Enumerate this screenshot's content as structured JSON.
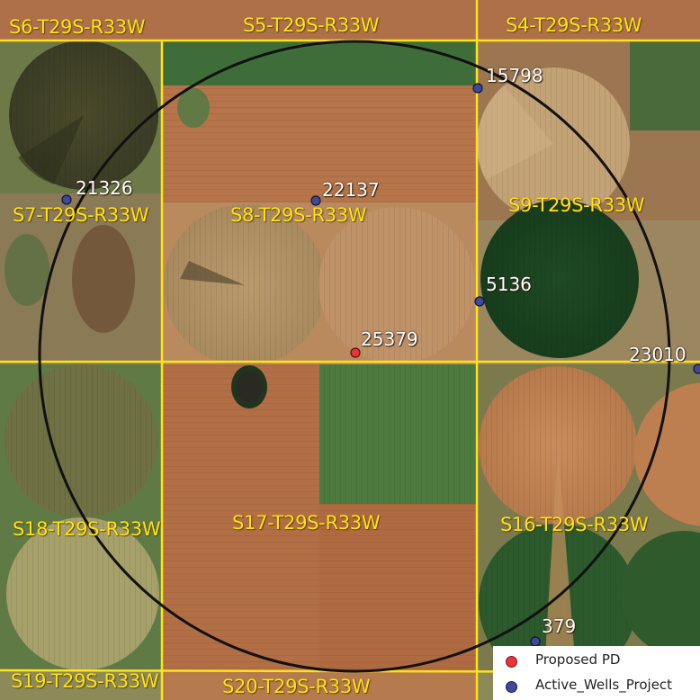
{
  "sections": [
    {
      "id": "s6",
      "label": "S6-T29S-R33W"
    },
    {
      "id": "s5",
      "label": "S5-T29S-R33W"
    },
    {
      "id": "s4",
      "label": "S4-T29S-R33W"
    },
    {
      "id": "s7",
      "label": "S7-T29S-R33W"
    },
    {
      "id": "s8",
      "label": "S8-T29S-R33W"
    },
    {
      "id": "s9",
      "label": "S9-T29S-R33W"
    },
    {
      "id": "s18",
      "label": "S18-T29S-R33W"
    },
    {
      "id": "s17",
      "label": "S17-T29S-R33W"
    },
    {
      "id": "s16",
      "label": "S16-T29S-R33W"
    },
    {
      "id": "s19",
      "label": "S19-T29S-R33W"
    },
    {
      "id": "s20",
      "label": "S20-T29S-R33W"
    }
  ],
  "wells": [
    {
      "id": "15798",
      "label": "15798",
      "type": "active"
    },
    {
      "id": "21326",
      "label": "21326",
      "type": "active"
    },
    {
      "id": "22137",
      "label": "22137",
      "type": "active"
    },
    {
      "id": "5136",
      "label": "5136",
      "type": "active"
    },
    {
      "id": "25379",
      "label": "25379",
      "type": "proposed"
    },
    {
      "id": "23010",
      "label": "23010",
      "type": "active"
    },
    {
      "id": "379",
      "label": "379",
      "type": "active"
    }
  ],
  "legend": {
    "items": [
      {
        "label": "Proposed PD",
        "color": "#e8343a"
      },
      {
        "label": "Active_Wells_Project",
        "color": "#3d4a9a"
      }
    ]
  },
  "colors": {
    "section_line": "#ffe21a",
    "section_label": "#ffe21a",
    "buffer_circle": "#111111",
    "proposed_well": "#e8343a",
    "active_well": "#3d4a9a",
    "well_label": "#ffffff"
  }
}
